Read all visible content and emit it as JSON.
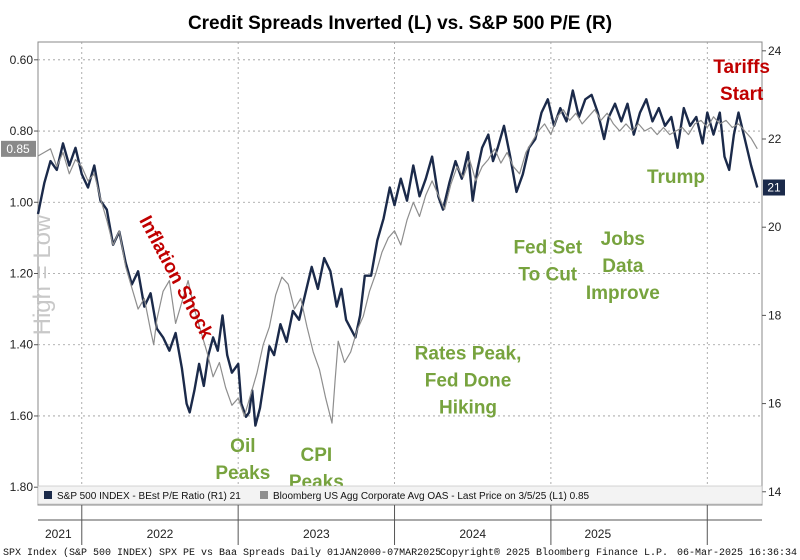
{
  "chart_data": {
    "type": "line",
    "title": "Credit Spreads Inverted (L) vs. S&P 500 P/E (R)",
    "left_axis": {
      "label": "High = Low",
      "inverted": true,
      "ylim": [
        0.55,
        1.85
      ],
      "ticks": [
        "0.60",
        "0.80",
        "1.00",
        "1.20",
        "1.40",
        "1.60",
        "1.80"
      ],
      "tick_values": [
        0.6,
        0.8,
        1.0,
        1.2,
        1.4,
        1.6,
        1.8
      ]
    },
    "right_axis": {
      "ylim": [
        13.7,
        24.2
      ],
      "ticks": [
        "14",
        "16",
        "18",
        "20",
        "22",
        "24"
      ],
      "tick_values": [
        14,
        16,
        18,
        20,
        22,
        24
      ]
    },
    "x_axis": {
      "range": [
        2020.72,
        2025.35
      ],
      "years": [
        "2021",
        "2022",
        "2023",
        "2024",
        "2025"
      ],
      "year_label_positions": [
        2020.85,
        2021.5,
        2022.5,
        2023.5,
        2024.3
      ],
      "year_boundaries": [
        2021.0,
        2022.0,
        2023.0,
        2024.0,
        2025.0
      ]
    },
    "grid": true,
    "series": [
      {
        "name": "S&P 500 INDEX - BEst P/E Ratio (R1)",
        "axis": "right",
        "color": "#1b2a4a",
        "last_value_label": "21",
        "points": [
          [
            2020.72,
            20.3
          ],
          [
            2020.76,
            21.0
          ],
          [
            2020.8,
            21.5
          ],
          [
            2020.84,
            21.3
          ],
          [
            2020.88,
            21.9
          ],
          [
            2020.92,
            21.4
          ],
          [
            2020.96,
            21.8
          ],
          [
            2021.0,
            21.2
          ],
          [
            2021.04,
            20.9
          ],
          [
            2021.08,
            21.4
          ],
          [
            2021.12,
            20.6
          ],
          [
            2021.16,
            20.4
          ],
          [
            2021.2,
            19.6
          ],
          [
            2021.24,
            19.9
          ],
          [
            2021.28,
            19.2
          ],
          [
            2021.32,
            18.7
          ],
          [
            2021.36,
            19.0
          ],
          [
            2021.4,
            18.2
          ],
          [
            2021.44,
            18.5
          ],
          [
            2021.48,
            17.7
          ],
          [
            2021.52,
            17.5
          ],
          [
            2021.56,
            17.2
          ],
          [
            2021.6,
            17.6
          ],
          [
            2021.64,
            16.8
          ],
          [
            2021.67,
            16.0
          ],
          [
            2021.69,
            15.8
          ],
          [
            2021.72,
            16.3
          ],
          [
            2021.75,
            16.9
          ],
          [
            2021.78,
            16.4
          ],
          [
            2021.81,
            17.1
          ],
          [
            2021.84,
            17.5
          ],
          [
            2021.87,
            17.2
          ],
          [
            2021.9,
            18.0
          ],
          [
            2021.93,
            17.1
          ],
          [
            2021.96,
            16.7
          ],
          [
            2022.0,
            16.9
          ],
          [
            2022.02,
            16.0
          ],
          [
            2022.05,
            15.7
          ],
          [
            2022.07,
            15.8
          ],
          [
            2022.09,
            16.3
          ],
          [
            2022.11,
            15.5
          ],
          [
            2022.14,
            15.9
          ],
          [
            2022.17,
            16.6
          ],
          [
            2022.2,
            17.3
          ],
          [
            2022.23,
            17.1
          ],
          [
            2022.27,
            17.8
          ],
          [
            2022.31,
            17.4
          ],
          [
            2022.35,
            18.1
          ],
          [
            2022.39,
            17.9
          ],
          [
            2022.43,
            18.5
          ],
          [
            2022.47,
            19.1
          ],
          [
            2022.51,
            18.6
          ],
          [
            2022.55,
            19.3
          ],
          [
            2022.59,
            19.0
          ],
          [
            2022.63,
            18.2
          ],
          [
            2022.66,
            18.6
          ],
          [
            2022.69,
            17.9
          ],
          [
            2022.72,
            17.7
          ],
          [
            2022.75,
            17.5
          ],
          [
            2022.78,
            18.0
          ],
          [
            2022.81,
            18.9
          ],
          [
            2022.85,
            18.9
          ],
          [
            2022.89,
            19.7
          ],
          [
            2022.93,
            20.2
          ],
          [
            2022.97,
            20.9
          ],
          [
            2023.0,
            20.5
          ],
          [
            2023.04,
            21.1
          ],
          [
            2023.08,
            20.6
          ],
          [
            2023.12,
            21.4
          ],
          [
            2023.16,
            20.7
          ],
          [
            2023.2,
            21.1
          ],
          [
            2023.24,
            21.6
          ],
          [
            2023.28,
            20.7
          ],
          [
            2023.31,
            20.4
          ],
          [
            2023.35,
            21.0
          ],
          [
            2023.39,
            21.5
          ],
          [
            2023.43,
            21.1
          ],
          [
            2023.47,
            21.7
          ],
          [
            2023.5,
            20.6
          ],
          [
            2023.53,
            21.3
          ],
          [
            2023.56,
            21.8
          ],
          [
            2023.6,
            22.1
          ],
          [
            2023.63,
            21.5
          ],
          [
            2023.66,
            21.8
          ],
          [
            2023.7,
            22.3
          ],
          [
            2023.74,
            21.6
          ],
          [
            2023.78,
            20.8
          ],
          [
            2023.82,
            21.2
          ],
          [
            2023.86,
            21.8
          ],
          [
            2023.9,
            22.0
          ],
          [
            2023.94,
            22.6
          ],
          [
            2023.98,
            22.9
          ],
          [
            2024.02,
            22.3
          ],
          [
            2024.06,
            22.7
          ],
          [
            2024.1,
            22.4
          ],
          [
            2024.14,
            23.1
          ],
          [
            2024.18,
            22.5
          ],
          [
            2024.22,
            22.9
          ],
          [
            2024.26,
            23.0
          ],
          [
            2024.3,
            22.6
          ],
          [
            2024.34,
            22.0
          ],
          [
            2024.37,
            22.5
          ],
          [
            2024.41,
            22.8
          ],
          [
            2024.45,
            22.4
          ],
          [
            2024.49,
            22.8
          ],
          [
            2024.53,
            22.1
          ],
          [
            2024.57,
            22.6
          ],
          [
            2024.61,
            22.9
          ],
          [
            2024.65,
            22.4
          ],
          [
            2024.69,
            22.7
          ],
          [
            2024.73,
            22.3
          ],
          [
            2024.77,
            22.5
          ],
          [
            2024.81,
            21.8
          ],
          [
            2024.85,
            22.7
          ],
          [
            2024.89,
            22.3
          ],
          [
            2024.93,
            22.5
          ],
          [
            2024.97,
            21.9
          ],
          [
            2025.0,
            22.6
          ],
          [
            2025.04,
            22.1
          ],
          [
            2025.08,
            22.6
          ],
          [
            2025.11,
            21.6
          ],
          [
            2025.14,
            21.3
          ],
          [
            2025.17,
            22.1
          ],
          [
            2025.2,
            22.6
          ],
          [
            2025.24,
            22.0
          ],
          [
            2025.28,
            21.4
          ],
          [
            2025.32,
            20.9
          ]
        ]
      },
      {
        "name": "Bloomberg US Agg Corporate Avg OAS - Last Price on 3/5/25 (L1)",
        "axis": "left",
        "color": "#8e8e8e",
        "last_value_label": "0.85",
        "points": [
          [
            2020.72,
            0.87
          ],
          [
            2020.76,
            0.86
          ],
          [
            2020.8,
            0.85
          ],
          [
            2020.84,
            0.9
          ],
          [
            2020.88,
            0.86
          ],
          [
            2020.92,
            0.92
          ],
          [
            2020.96,
            0.88
          ],
          [
            2021.0,
            0.9
          ],
          [
            2021.04,
            0.94
          ],
          [
            2021.08,
            0.92
          ],
          [
            2021.12,
            0.99
          ],
          [
            2021.16,
            1.05
          ],
          [
            2021.2,
            1.12
          ],
          [
            2021.24,
            1.08
          ],
          [
            2021.28,
            1.18
          ],
          [
            2021.32,
            1.24
          ],
          [
            2021.36,
            1.3
          ],
          [
            2021.4,
            1.27
          ],
          [
            2021.44,
            1.36
          ],
          [
            2021.46,
            1.4
          ],
          [
            2021.48,
            1.33
          ],
          [
            2021.52,
            1.25
          ],
          [
            2021.56,
            1.22
          ],
          [
            2021.6,
            1.34
          ],
          [
            2021.64,
            1.28
          ],
          [
            2021.68,
            1.22
          ],
          [
            2021.72,
            1.3
          ],
          [
            2021.76,
            1.36
          ],
          [
            2021.8,
            1.42
          ],
          [
            2021.84,
            1.49
          ],
          [
            2021.88,
            1.45
          ],
          [
            2021.92,
            1.52
          ],
          [
            2021.96,
            1.57
          ],
          [
            2022.0,
            1.55
          ],
          [
            2022.04,
            1.6
          ],
          [
            2022.08,
            1.54
          ],
          [
            2022.12,
            1.48
          ],
          [
            2022.16,
            1.4
          ],
          [
            2022.2,
            1.35
          ],
          [
            2022.24,
            1.26
          ],
          [
            2022.28,
            1.21
          ],
          [
            2022.32,
            1.23
          ],
          [
            2022.36,
            1.3
          ],
          [
            2022.4,
            1.27
          ],
          [
            2022.44,
            1.35
          ],
          [
            2022.48,
            1.42
          ],
          [
            2022.52,
            1.47
          ],
          [
            2022.56,
            1.55
          ],
          [
            2022.6,
            1.62
          ],
          [
            2022.62,
            1.5
          ],
          [
            2022.64,
            1.39
          ],
          [
            2022.68,
            1.45
          ],
          [
            2022.72,
            1.42
          ],
          [
            2022.76,
            1.36
          ],
          [
            2022.8,
            1.32
          ],
          [
            2022.84,
            1.25
          ],
          [
            2022.88,
            1.2
          ],
          [
            2022.92,
            1.14
          ],
          [
            2022.96,
            1.1
          ],
          [
            2023.0,
            1.08
          ],
          [
            2023.04,
            1.12
          ],
          [
            2023.08,
            1.05
          ],
          [
            2023.12,
            1.0
          ],
          [
            2023.16,
            1.04
          ],
          [
            2023.2,
            0.98
          ],
          [
            2023.24,
            0.94
          ],
          [
            2023.28,
            0.98
          ],
          [
            2023.32,
            1.02
          ],
          [
            2023.36,
            0.95
          ],
          [
            2023.4,
            0.9
          ],
          [
            2023.44,
            0.93
          ],
          [
            2023.48,
            0.88
          ],
          [
            2023.52,
            0.94
          ],
          [
            2023.56,
            0.9
          ],
          [
            2023.6,
            0.88
          ],
          [
            2023.64,
            0.85
          ],
          [
            2023.68,
            0.89
          ],
          [
            2023.72,
            0.86
          ],
          [
            2023.76,
            0.9
          ],
          [
            2023.8,
            0.92
          ],
          [
            2023.84,
            0.86
          ],
          [
            2023.88,
            0.83
          ],
          [
            2023.92,
            0.8
          ],
          [
            2023.96,
            0.78
          ],
          [
            2024.0,
            0.81
          ],
          [
            2024.04,
            0.76
          ],
          [
            2024.08,
            0.74
          ],
          [
            2024.12,
            0.77
          ],
          [
            2024.16,
            0.75
          ],
          [
            2024.2,
            0.78
          ],
          [
            2024.24,
            0.76
          ],
          [
            2024.28,
            0.74
          ],
          [
            2024.32,
            0.77
          ],
          [
            2024.36,
            0.75
          ],
          [
            2024.4,
            0.78
          ],
          [
            2024.44,
            0.8
          ],
          [
            2024.48,
            0.78
          ],
          [
            2024.52,
            0.8
          ],
          [
            2024.56,
            0.78
          ],
          [
            2024.6,
            0.8
          ],
          [
            2024.64,
            0.79
          ],
          [
            2024.68,
            0.81
          ],
          [
            2024.72,
            0.79
          ],
          [
            2024.76,
            0.81
          ],
          [
            2024.8,
            0.8
          ],
          [
            2024.84,
            0.79
          ],
          [
            2024.88,
            0.81
          ],
          [
            2024.92,
            0.78
          ],
          [
            2024.96,
            0.77
          ],
          [
            2025.0,
            0.79
          ],
          [
            2025.04,
            0.76
          ],
          [
            2025.08,
            0.78
          ],
          [
            2025.12,
            0.77
          ],
          [
            2025.16,
            0.79
          ],
          [
            2025.2,
            0.78
          ],
          [
            2025.24,
            0.8
          ],
          [
            2025.28,
            0.82
          ],
          [
            2025.32,
            0.85
          ]
        ]
      }
    ],
    "annotations": [
      {
        "text": "Inflation Shock",
        "lines": [
          "Inflation Shock"
        ],
        "color": "#c00000",
        "at": [
          2021.57,
          18.8
        ],
        "rotate": 62
      },
      {
        "text": "Oil Peaks",
        "lines": [
          "Oil",
          "Peaks"
        ],
        "color": "#77a33e",
        "at": [
          2022.03,
          14.9
        ]
      },
      {
        "text": "CPI Peaks",
        "lines": [
          "CPI",
          "Peaks"
        ],
        "color": "#77a33e",
        "at": [
          2022.5,
          14.7
        ]
      },
      {
        "text": "Rates Peak, Fed Done Hiking",
        "lines": [
          "Rates Peak,",
          "Fed Done",
          "Hiking"
        ],
        "color": "#77a33e",
        "at": [
          2023.47,
          17.0
        ]
      },
      {
        "text": "Fed Set To Cut",
        "lines": [
          "Fed Set",
          "To Cut"
        ],
        "color": "#77a33e",
        "at": [
          2023.98,
          19.4
        ]
      },
      {
        "text": "Jobs Data Improve",
        "lines": [
          "Jobs",
          "Data",
          "Improve"
        ],
        "color": "#77a33e",
        "at": [
          2024.46,
          19.6
        ]
      },
      {
        "text": "Trump",
        "lines": [
          "Trump"
        ],
        "color": "#77a33e",
        "at": [
          2024.8,
          21.0
        ]
      },
      {
        "text": "Tariffs Start",
        "lines": [
          "Tariffs",
          "Start"
        ],
        "color": "#c00000",
        "at": [
          2025.22,
          23.5
        ]
      }
    ]
  },
  "footer": {
    "left": "SPX Index (S&P 500 INDEX) SPX PE vs Baa Spreads  Daily 01JAN2000-07MAR2025",
    "center": "Copyright® 2025 Bloomberg Finance L.P.",
    "right": "06-Mar-2025 16:36:34"
  },
  "colors": {
    "background": "#ffffff",
    "plot_border": "#888888",
    "grid": "#9a9a9a"
  }
}
